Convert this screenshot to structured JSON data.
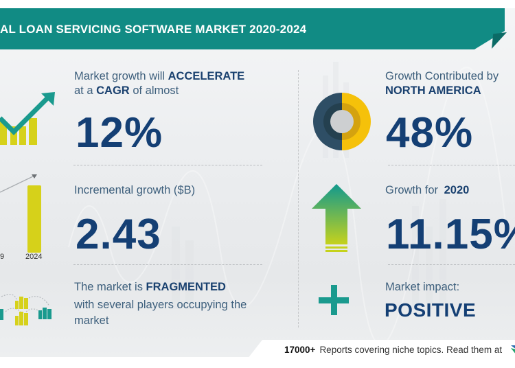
{
  "header": {
    "title": "AL LOAN SERVICING SOFTWARE MARKET 2020-2024"
  },
  "colors": {
    "banner": "#118b84",
    "accent_yellow": "#d6d11a",
    "accent_teal": "#1a9a8e",
    "text_dark_blue": "#143f74",
    "text_label": "#3d5f7c"
  },
  "left": {
    "cagr": {
      "line1_prefix": "Market growth will",
      "line1_bold": "ACCELERATE",
      "line2_prefix": "at a",
      "line2_bold": "CAGR",
      "line2_suffix": "of almost",
      "value": "12%",
      "icon": "growth-chart-icon"
    },
    "incremental": {
      "label": "Incremental growth ($B)",
      "value": "2.43",
      "chart_labels": [
        "9",
        "2024"
      ],
      "icon": "bar-growth-icon"
    },
    "fragmented": {
      "line1_prefix": "The market is",
      "line1_bold": "FRAGMENTED",
      "line2": "with several players occupying the",
      "line3": "market",
      "icon": "buildings-network-icon"
    }
  },
  "right": {
    "region": {
      "line1": "Growth Contributed by",
      "line2_bold": "NORTH AMERICA",
      "value": "48%",
      "share": 0.48,
      "icon": "donut-chart-icon"
    },
    "growth_year": {
      "label_prefix": "Growth for",
      "label_bold": "2020",
      "value": "11.15%",
      "icon": "up-arrow-icon"
    },
    "impact": {
      "label": "Market impact:",
      "value": "POSITIVE",
      "icon": "plus-icon"
    }
  },
  "footer": {
    "count": "17000+",
    "text": "Reports covering niche topics. Read them at"
  }
}
